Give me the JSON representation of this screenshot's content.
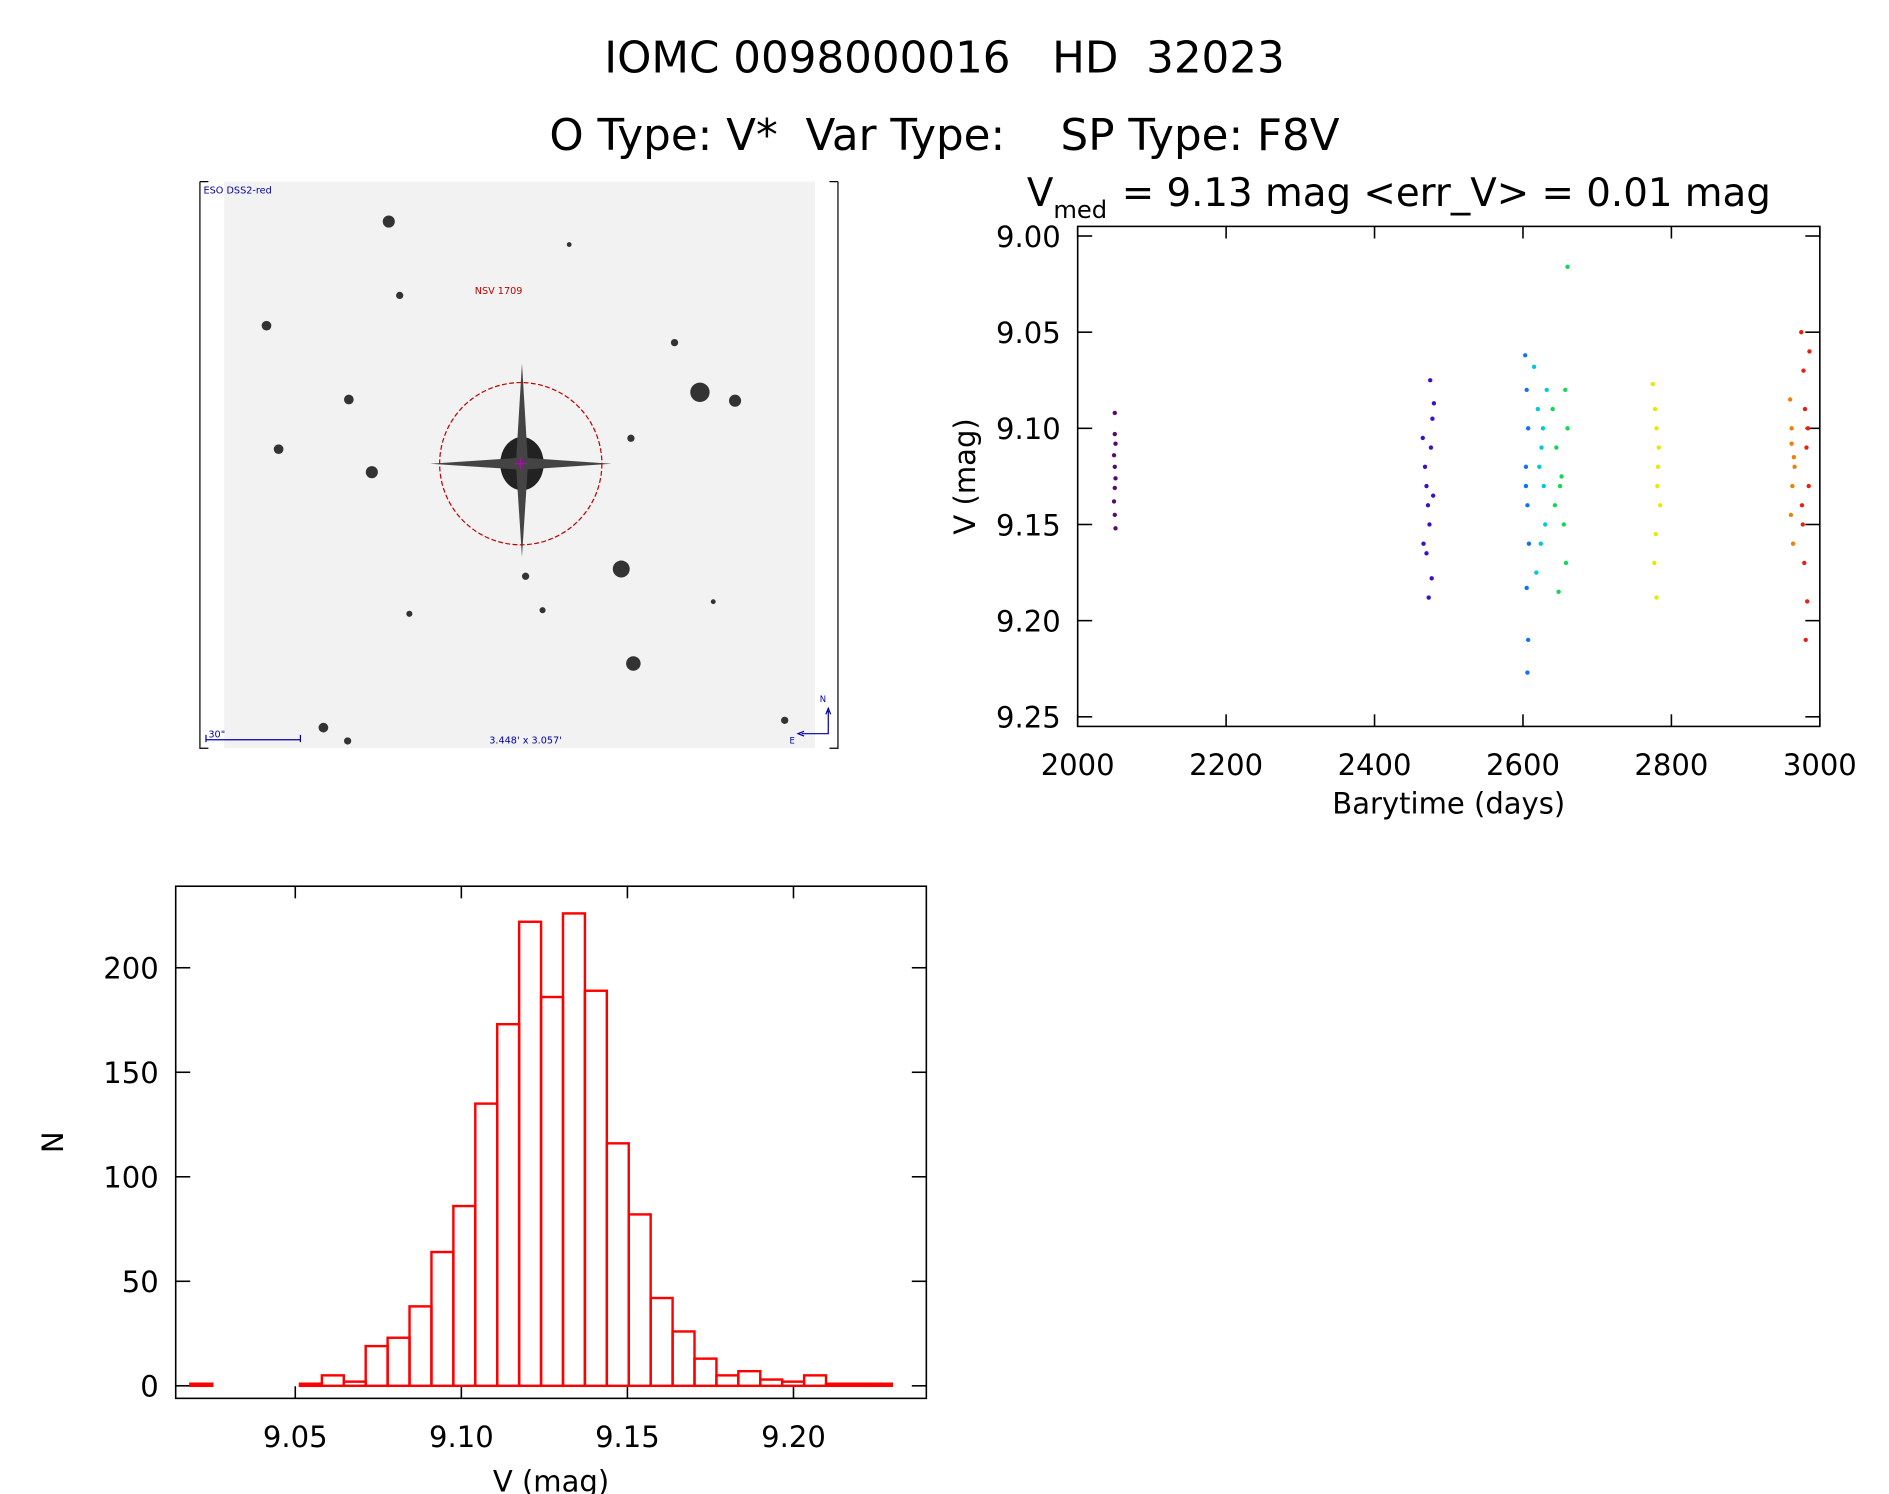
{
  "header": {
    "title": "IOMC 0098000016   HD  32023",
    "subtitle": "O Type: V*  Var Type:    SP Type: F8V"
  },
  "image": {
    "survey": "ESO DSS2-red",
    "target": "NSV 1709",
    "scale": "30\"",
    "field": "3.448' x 3.057'",
    "north": "N",
    "east": "E"
  },
  "chart_data": [
    {
      "type": "scatter",
      "title": {
        "symbol": "V",
        "subscript": "med",
        "text": "= 9.13 mag <err_V> = 0.01 mag"
      },
      "x_label": "Barytime (days)",
      "y_label": "V (mag)",
      "xlim": [
        2000,
        3000
      ],
      "xticks": [
        2000,
        2200,
        2400,
        2600,
        2800,
        3000
      ],
      "ylim": [
        9.255,
        8.995
      ],
      "yticks": [
        {
          "value": 9.0,
          "label": "9.00"
        },
        9.05,
        {
          "value": 9.1,
          "label": "9.10"
        },
        9.15,
        {
          "value": 9.2,
          "label": "9.20"
        },
        9.25
      ],
      "series": [
        {
          "color": "#5a0a6e",
          "x": [
            2050,
            2050,
            2051,
            2049,
            2050,
            2051,
            2050,
            2049,
            2050,
            2051
          ],
          "values": [
            9.092,
            9.103,
            9.108,
            9.114,
            9.12,
            9.126,
            9.131,
            9.138,
            9.145,
            9.152
          ]
        },
        {
          "color": "#3b10c8",
          "x": [
            2465,
            2468,
            2470,
            2472,
            2474,
            2476,
            2478,
            2480,
            2470,
            2475,
            2466,
            2479,
            2473,
            2477
          ],
          "values": [
            9.105,
            9.12,
            9.13,
            9.14,
            9.15,
            9.11,
            9.095,
            9.087,
            9.165,
            9.075,
            9.16,
            9.135,
            9.188,
            9.178
          ]
        },
        {
          "color": "#1070ff",
          "x": [
            2603,
            2605,
            2607,
            2604,
            2606,
            2608,
            2605,
            2607,
            2606,
            2604
          ],
          "values": [
            9.062,
            9.08,
            9.1,
            9.12,
            9.14,
            9.16,
            9.183,
            9.21,
            9.227,
            9.13
          ]
        },
        {
          "color": "#00c8e0",
          "x": [
            2615,
            2620,
            2625,
            2628,
            2630,
            2618,
            2622,
            2627,
            2632,
            2624
          ],
          "values": [
            9.068,
            9.09,
            9.11,
            9.13,
            9.15,
            9.175,
            9.12,
            9.1,
            9.08,
            9.16
          ]
        },
        {
          "color": "#10d850",
          "x": [
            2640,
            2645,
            2650,
            2655,
            2658,
            2660,
            2648,
            2643,
            2657,
            2652,
            2660
          ],
          "values": [
            9.09,
            9.11,
            9.13,
            9.15,
            9.17,
            9.1,
            9.185,
            9.14,
            9.08,
            9.125,
            9.016
          ]
        },
        {
          "color": "#e8e800",
          "x": [
            2775,
            2778,
            2780,
            2782,
            2785,
            2779,
            2781,
            2783,
            2777,
            2780
          ],
          "values": [
            9.077,
            9.09,
            9.1,
            9.12,
            9.14,
            9.155,
            9.13,
            9.11,
            9.17,
            9.188
          ]
        },
        {
          "color": "#f08000",
          "x": [
            2960,
            2962,
            2965,
            2963,
            2961,
            2964,
            2966,
            2962
          ],
          "values": [
            9.085,
            9.1,
            9.115,
            9.13,
            9.145,
            9.16,
            9.12,
            9.108
          ]
        },
        {
          "color": "#e82010",
          "x": [
            2975,
            2978,
            2980,
            2982,
            2985,
            2977,
            2979,
            2983,
            2981,
            2984,
            2976,
            2986
          ],
          "values": [
            9.05,
            9.07,
            9.09,
            9.11,
            9.13,
            9.15,
            9.17,
            9.19,
            9.21,
            9.1,
            9.14,
            9.06
          ]
        }
      ]
    },
    {
      "type": "histogram",
      "x_label": "V (mag)",
      "y_label": "N",
      "color": "#ff0000",
      "xlim": [
        9.014,
        9.24
      ],
      "xticks": [
        9.05,
        {
          "value": 9.1,
          "label": "9.10"
        },
        9.15,
        {
          "value": 9.2,
          "label": "9.20"
        }
      ],
      "ylim": [
        -6,
        239
      ],
      "yticks": [
        0,
        50,
        100,
        150,
        200
      ],
      "bins": [
        9.0184,
        9.025,
        9.0316,
        9.0382,
        9.0448,
        9.0514,
        9.058,
        9.0646,
        9.0712,
        9.0778,
        9.0844,
        9.091,
        9.0976,
        9.1042,
        9.1108,
        9.1174,
        9.124,
        9.1306,
        9.1372,
        9.1438,
        9.1504,
        9.157,
        9.1636,
        9.1702,
        9.1768,
        9.1834,
        9.19,
        9.1966,
        9.2032,
        9.2098,
        9.2164,
        9.223,
        9.2296
      ],
      "values": [
        1,
        0,
        0,
        0,
        0,
        1,
        5,
        2,
        19,
        23,
        38,
        64,
        86,
        135,
        173,
        222,
        186,
        226,
        189,
        116,
        82,
        42,
        26,
        13,
        5,
        7,
        3,
        2,
        5,
        1,
        1,
        1
      ]
    }
  ]
}
